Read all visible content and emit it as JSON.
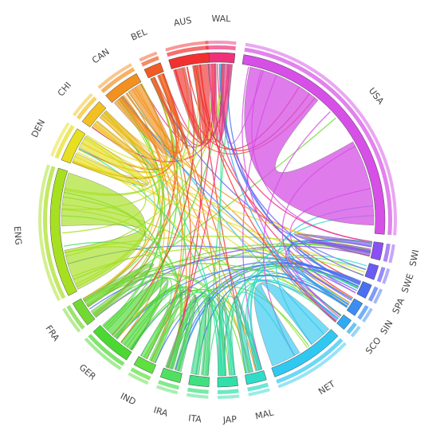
{
  "nodes": [
    {
      "label": "WAL",
      "color": "#f0307a"
    },
    {
      "label": "USA",
      "color": "#d64fe6"
    },
    {
      "label": "SWI",
      "color": "#8b4ff2"
    },
    {
      "label": "SWE",
      "color": "#6a5cf2"
    },
    {
      "label": "SPA",
      "color": "#4a70f2"
    },
    {
      "label": "SIN",
      "color": "#3a8ef2"
    },
    {
      "label": "SCO",
      "color": "#30aaf0"
    },
    {
      "label": "NET",
      "color": "#30c8f0"
    },
    {
      "label": "MAL",
      "color": "#30dcc8"
    },
    {
      "label": "JAP",
      "color": "#30e0a8"
    },
    {
      "label": "ITA",
      "color": "#40e080"
    },
    {
      "label": "IRA",
      "color": "#50e060"
    },
    {
      "label": "IND",
      "color": "#5ee040"
    },
    {
      "label": "GER",
      "color": "#4cd832"
    },
    {
      "label": "FRA",
      "color": "#72d832"
    },
    {
      "label": "ENG",
      "color": "#a6e020"
    },
    {
      "label": "DEN",
      "color": "#e6e020"
    },
    {
      "label": "CHI",
      "color": "#f2c020"
    },
    {
      "label": "CAN",
      "color": "#f29020"
    },
    {
      "label": "BEL",
      "color": "#f25a24"
    },
    {
      "label": "AUS",
      "color": "#f23030"
    }
  ]
}
